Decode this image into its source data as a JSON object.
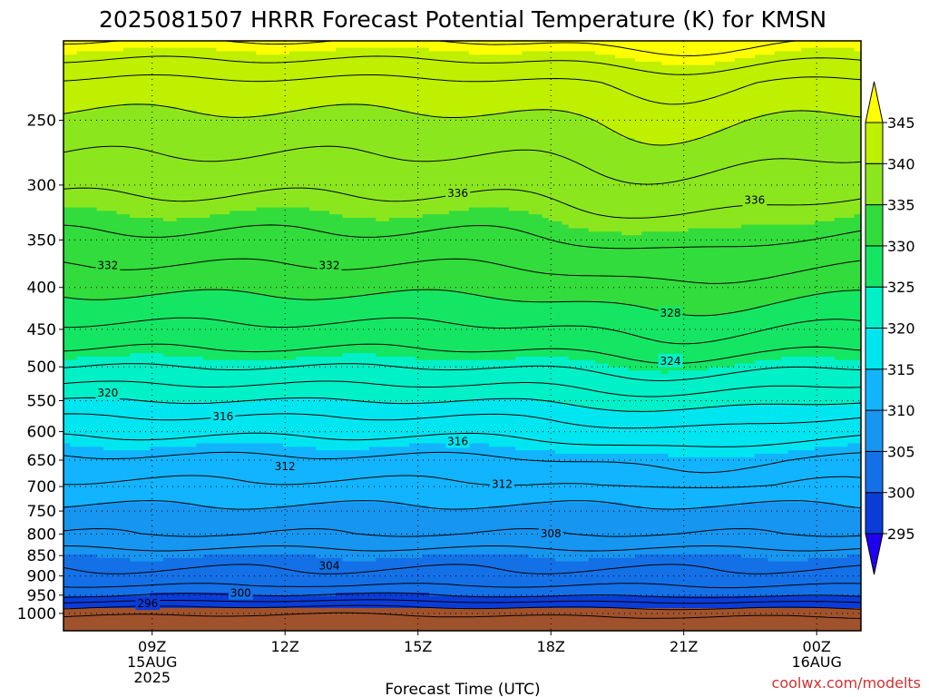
{
  "chart_data": {
    "type": "heatmap",
    "title": "2025081507 HRRR Forecast Potential Temperature (K) for KMSN",
    "xlabel": "Forecast Time (UTC)",
    "credit": "coolwx.com/modelts",
    "x_ticks": [
      {
        "hour": 9,
        "lines": [
          "09Z",
          "15AUG",
          "2025"
        ]
      },
      {
        "hour": 12,
        "lines": [
          "12Z"
        ]
      },
      {
        "hour": 15,
        "lines": [
          "15Z"
        ]
      },
      {
        "hour": 18,
        "lines": [
          "18Z"
        ]
      },
      {
        "hour": 21,
        "lines": [
          "21Z"
        ]
      },
      {
        "hour": 24,
        "lines": [
          "00Z",
          "16AUG"
        ]
      }
    ],
    "xlim_hours": [
      7,
      25
    ],
    "pressure_ticks": [
      250,
      300,
      350,
      400,
      450,
      500,
      550,
      600,
      650,
      700,
      750,
      800,
      850,
      900,
      950,
      1000
    ],
    "pressure_range_hpa": [
      200,
      1050
    ],
    "y_scale": "log-pressure",
    "surface_pressure_hpa": 985,
    "colorbar": {
      "ticks": [
        295,
        300,
        305,
        310,
        315,
        320,
        325,
        330,
        335,
        340,
        345
      ],
      "colors": [
        "#1f00f0",
        "#0a3cd8",
        "#1470e6",
        "#1696f0",
        "#12b4ff",
        "#00e6f0",
        "#00f0c8",
        "#14e664",
        "#32dc3c",
        "#8ce61e",
        "#bef000",
        "#ffff00"
      ],
      "extend": "both"
    },
    "contour_interval_k": 2,
    "contour_labels": [
      {
        "value": 336,
        "hour": 15.9,
        "p": 307
      },
      {
        "value": 336,
        "hour": 22.6,
        "p": 313
      },
      {
        "value": 332,
        "hour": 8.0,
        "p": 376
      },
      {
        "value": 332,
        "hour": 13.0,
        "p": 376
      },
      {
        "value": 328,
        "hour": 20.7,
        "p": 430
      },
      {
        "value": 324,
        "hour": 20.7,
        "p": 492
      },
      {
        "value": 320,
        "hour": 8.0,
        "p": 538
      },
      {
        "value": 316,
        "hour": 10.6,
        "p": 575
      },
      {
        "value": 316,
        "hour": 15.9,
        "p": 617
      },
      {
        "value": 312,
        "hour": 12.0,
        "p": 662
      },
      {
        "value": 312,
        "hour": 16.9,
        "p": 695
      },
      {
        "value": 308,
        "hour": 18.0,
        "p": 799
      },
      {
        "value": 304,
        "hour": 13.0,
        "p": 875
      },
      {
        "value": 300,
        "hour": 11.0,
        "p": 945
      },
      {
        "value": 296,
        "hour": 8.9,
        "p": 973
      }
    ],
    "theta_profile": [
      {
        "p": 200,
        "theta": 346.0
      },
      {
        "p": 225,
        "theta": 341.5
      },
      {
        "p": 250,
        "theta": 339.5
      },
      {
        "p": 275,
        "theta": 338.0
      },
      {
        "p": 300,
        "theta": 336.5
      },
      {
        "p": 325,
        "theta": 335.0
      },
      {
        "p": 350,
        "theta": 333.5
      },
      {
        "p": 375,
        "theta": 332.0
      },
      {
        "p": 400,
        "theta": 330.5
      },
      {
        "p": 425,
        "theta": 329.0
      },
      {
        "p": 450,
        "theta": 327.5
      },
      {
        "p": 475,
        "theta": 326.0
      },
      {
        "p": 500,
        "theta": 324.0
      },
      {
        "p": 525,
        "theta": 322.0
      },
      {
        "p": 550,
        "theta": 320.0
      },
      {
        "p": 575,
        "theta": 318.0
      },
      {
        "p": 600,
        "theta": 316.5
      },
      {
        "p": 625,
        "theta": 315.0
      },
      {
        "p": 650,
        "theta": 313.5
      },
      {
        "p": 675,
        "theta": 312.5
      },
      {
        "p": 700,
        "theta": 311.5
      },
      {
        "p": 750,
        "theta": 309.5
      },
      {
        "p": 800,
        "theta": 308.0
      },
      {
        "p": 850,
        "theta": 305.0
      },
      {
        "p": 900,
        "theta": 303.5
      },
      {
        "p": 950,
        "theta": 300.5
      },
      {
        "p": 985,
        "theta": 296.0
      }
    ]
  }
}
